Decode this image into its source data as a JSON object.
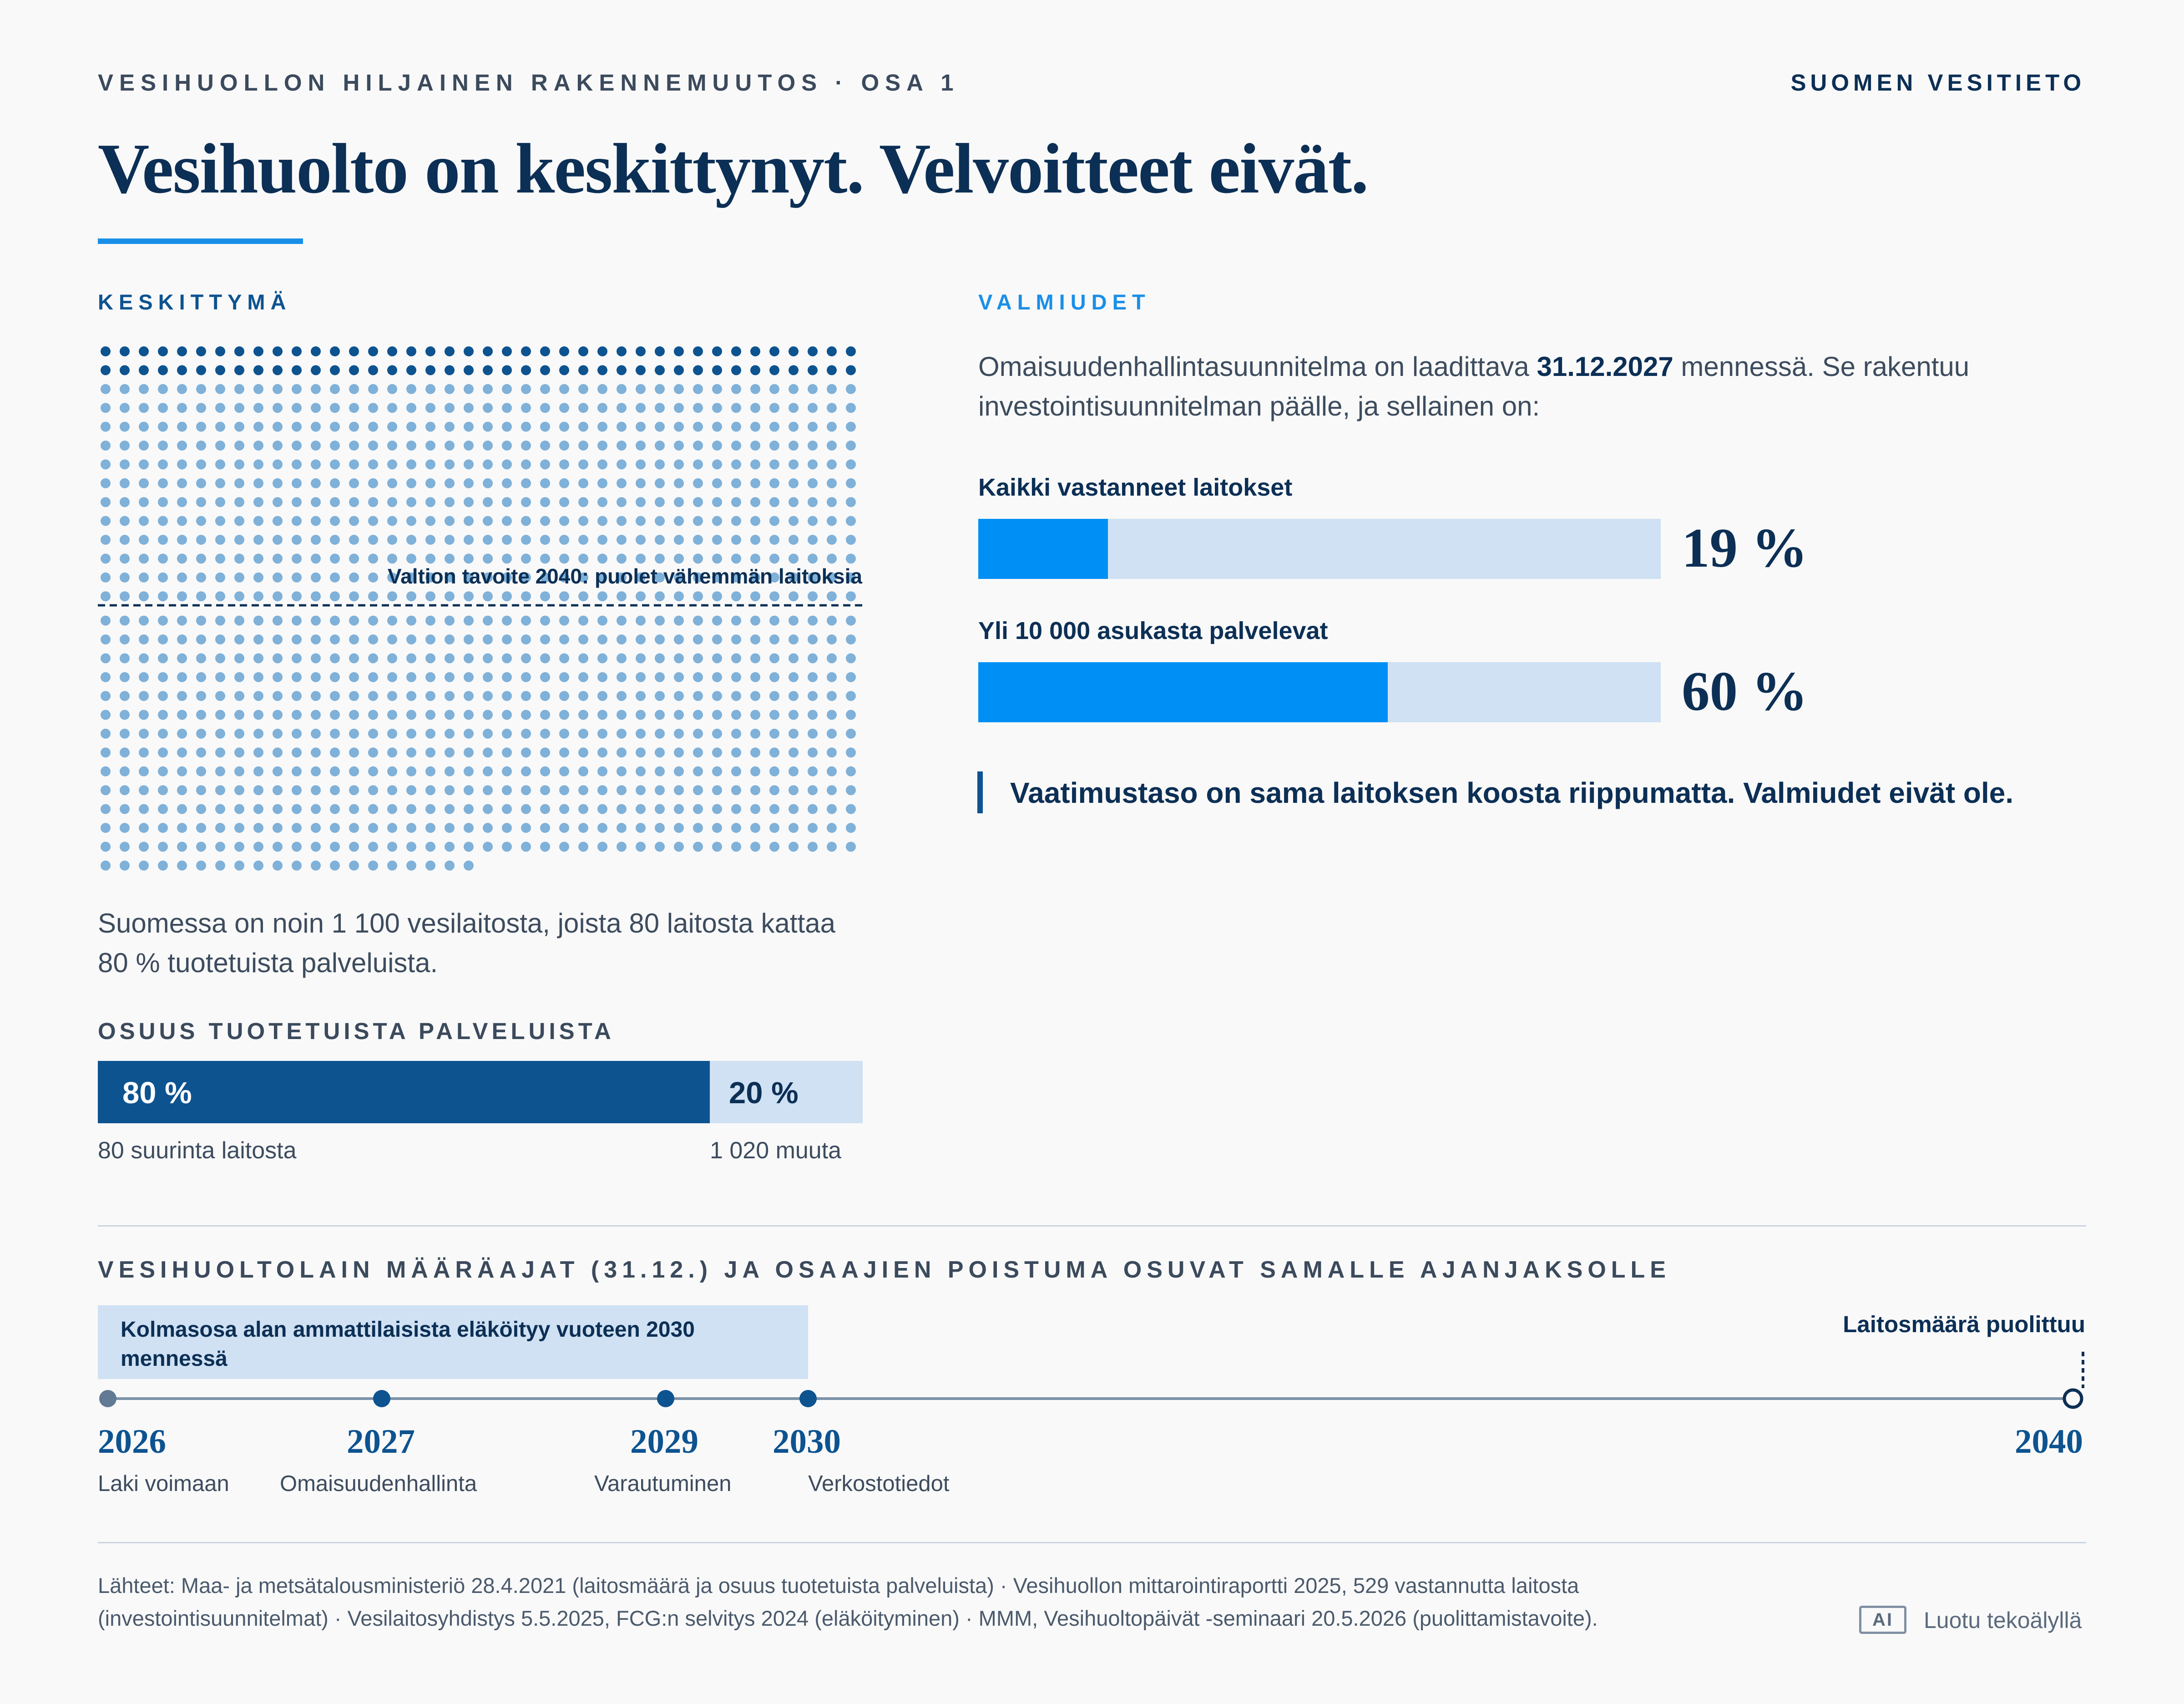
{
  "header": {
    "kicker": "VESIHUOLLON HILJAINEN RAKENNEMUUTOS · OSA 1",
    "brand": "SUOMEN VESITIETO",
    "title": "Vesihuolto on keskittynyt. Velvoitteet eivät."
  },
  "left": {
    "label": "KESKITTYMÄ",
    "target_annotation": "Valtion tavoite 2040: puolet vähemmän laitoksia",
    "description": "Suomessa on noin 1 100 vesilaitosta, joista 80 laitosta kattaa 80 % tuotetuista palveluista.",
    "share_title": "OSUUS TUOTETUISTA PALVELUISTA",
    "share_large_pct": "80 %",
    "share_small_pct": "20 %",
    "share_large_label": "80 suurinta laitosta",
    "share_small_label": "1 020 muuta"
  },
  "right": {
    "label": "VALMIUDET",
    "intro_pre": "Omaisuudenhallintasuunnitelma on laadittava ",
    "intro_date": "31.12.2027",
    "intro_post": " mennessä. Se rakentuu investointisuunnitelman päälle, ja sellainen on:",
    "bar1_label": "Kaikki vastanneet laitokset",
    "bar1_pct": "19 %",
    "bar2_label": "Yli 10 000 asukasta palvelevat",
    "bar2_pct": "60 %",
    "quote": "Vaatimustaso on sama laitoksen koosta riippumatta. Valmiudet eivät ole."
  },
  "timeline": {
    "title": "VESIHUOLTOLAIN MÄÄRÄAJAT (31.12.) JA OSAAJIEN POISTUMA OSUVAT SAMALLE AJANJAKSOLLE",
    "retirement_note": "Kolmasosa alan ammattilaisista eläköityy vuoteen 2030 mennessä",
    "end_note": "Laitosmäärä puolittuu",
    "events": [
      {
        "year": "2026",
        "label": "Laki voimaan"
      },
      {
        "year": "2027",
        "label": "Omaisuudenhallinta"
      },
      {
        "year": "2029",
        "label": "Varautuminen"
      },
      {
        "year": "2030",
        "label": "Verkostotiedot"
      },
      {
        "year": "2040",
        "label": ""
      }
    ]
  },
  "footer": {
    "sources": "Lähteet: Maa- ja metsätalousministeriö 28.4.2021 (laitosmäärä ja osuus tuotetuista palveluista) · Vesihuollon mittarointiraportti 2025, 529 vastannutta laitosta (investointisuunnitelmat) · Vesilaitosyhdistys 5.5.2025, FCG:n selvitys 2024 (eläköityminen) · MMM, Vesihuoltopäivät -seminaari 20.5.2026 (puolittamistavoite).",
    "ai_badge": "AI",
    "ai_text": "Luotu tekoälyllä"
  },
  "colors": {
    "navy": "#0c2f55",
    "dark_blue": "#0d5390",
    "bright_blue": "#1a8fe8",
    "light_blue": "#cfe1f3",
    "dot_light": "#7fb1d9"
  },
  "chart_data": [
    {
      "type": "waffle",
      "total_units": 1100,
      "highlighted_units": 80,
      "other_units": 1020
    },
    {
      "type": "bar",
      "categories": [
        "80 suurinta laitosta",
        "1 020 muuta"
      ],
      "values": [
        80,
        20
      ],
      "stacked": true
    },
    {
      "type": "bar",
      "categories": [
        "Kaikki vastanneet laitokset",
        "Yli 10 000 asukasta palvelevat"
      ],
      "values": [
        19,
        60
      ],
      "xlim": [
        0,
        100
      ]
    },
    {
      "type": "timeline",
      "x": [
        2026,
        2027,
        2029,
        2030,
        2040
      ]
    }
  ]
}
